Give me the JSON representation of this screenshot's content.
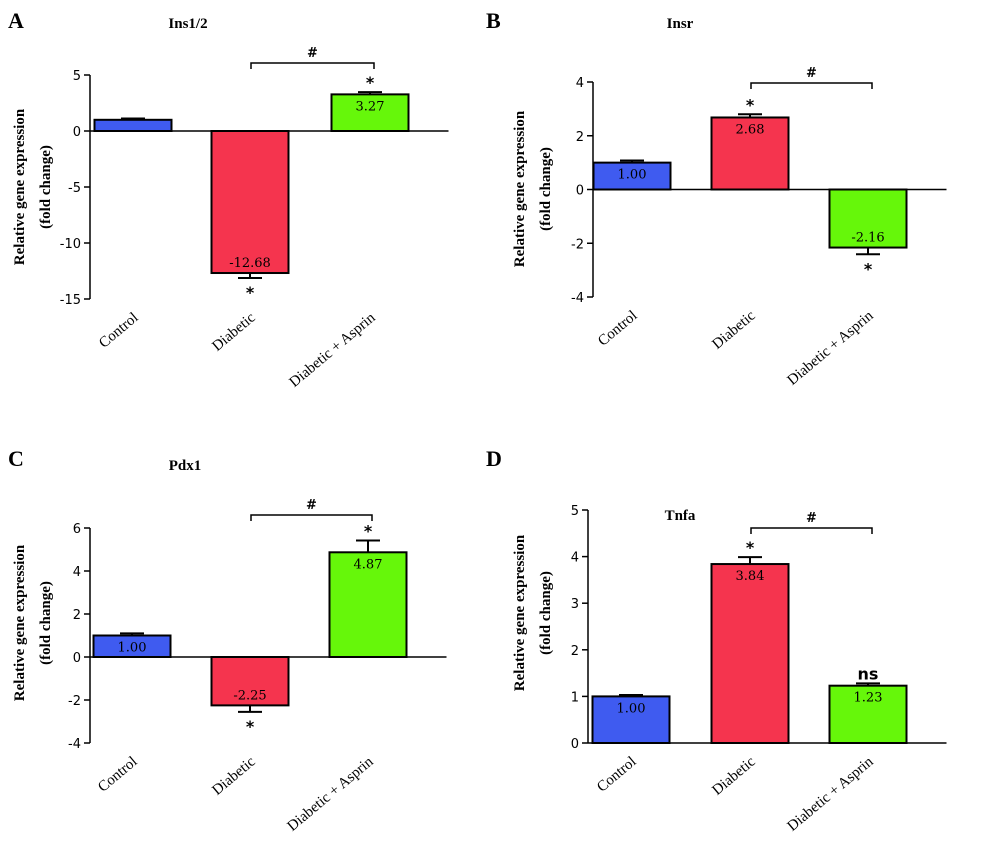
{
  "colors": {
    "control": "#3f5bf0",
    "diabetic": "#f5344e",
    "aspirin": "#66f70a"
  },
  "chart_data": [
    {
      "panel": "A",
      "type": "bar",
      "title": "Ins1/2",
      "ylabel_line1": "Relative gene expression",
      "ylabel_line2": "(fold change)",
      "ylim": [
        -15,
        5
      ],
      "yticks": [
        5,
        0,
        -5,
        -10,
        -15
      ],
      "categories": [
        "Control",
        "Diabetic",
        "Diabetic + Asprin"
      ],
      "values": [
        1.0,
        -12.68,
        3.27
      ],
      "errors": [
        0.12,
        0.45,
        0.2
      ],
      "value_labels": [
        "",
        "-12.68",
        "3.27"
      ],
      "sig": [
        "",
        "*",
        "*"
      ],
      "bracket": {
        "from": 1,
        "to": 2,
        "label": "#"
      }
    },
    {
      "panel": "B",
      "type": "bar",
      "title": "Insr",
      "ylabel_line1": "Relative gene expression",
      "ylabel_line2": "(fold change)",
      "ylim": [
        -4,
        4
      ],
      "yticks": [
        4,
        2,
        0,
        -2,
        -4
      ],
      "categories": [
        "Control",
        "Diabetic",
        "Diabetic + Asprin"
      ],
      "values": [
        1.0,
        2.68,
        -2.16
      ],
      "errors": [
        0.08,
        0.12,
        0.25
      ],
      "value_labels": [
        "1.00",
        "2.68",
        "-2.16"
      ],
      "sig": [
        "",
        "*",
        "*"
      ],
      "bracket": {
        "from": 1,
        "to": 2,
        "label": "#"
      }
    },
    {
      "panel": "C",
      "type": "bar",
      "title": "Pdx1",
      "ylabel_line1": "Relative gene expression",
      "ylabel_line2": "(fold change)",
      "ylim": [
        -4,
        6
      ],
      "yticks": [
        6,
        4,
        2,
        0,
        -2,
        -4
      ],
      "categories": [
        "Control",
        "Diabetic",
        "Diabetic + Asprin"
      ],
      "values": [
        1.0,
        -2.25,
        4.87
      ],
      "errors": [
        0.1,
        0.3,
        0.55
      ],
      "value_labels": [
        "1.00",
        "-2.25",
        "4.87"
      ],
      "sig": [
        "",
        "*",
        "*"
      ],
      "bracket": {
        "from": 1,
        "to": 2,
        "label": "#"
      }
    },
    {
      "panel": "D",
      "type": "bar",
      "title": "Tnfa",
      "ylabel_line1": "Relative gene expression",
      "ylabel_line2": "(fold change)",
      "ylim": [
        0,
        5
      ],
      "yticks": [
        5,
        4,
        3,
        2,
        1,
        0
      ],
      "categories": [
        "Control",
        "Diabetic",
        "Diabetic + Asprin"
      ],
      "values": [
        1.0,
        3.84,
        1.23
      ],
      "errors": [
        0.03,
        0.15,
        0.05
      ],
      "value_labels": [
        "1.00",
        "3.84",
        "1.23"
      ],
      "sig": [
        "",
        "*",
        "ns"
      ],
      "bracket": {
        "from": 1,
        "to": 2,
        "label": "#"
      }
    }
  ]
}
